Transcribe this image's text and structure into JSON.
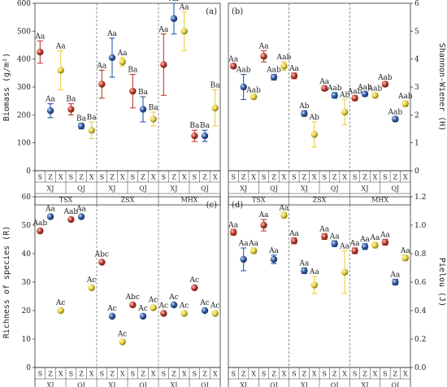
{
  "colors": {
    "S": "#c0392b",
    "Z": "#2e5aa8",
    "X": "#e8d23a"
  },
  "chart_data": [
    {
      "panel": "(a)",
      "type": "scatter",
      "ylabel": "Biomass (g/m²)",
      "ylim": [
        0,
        600
      ],
      "yticks": [
        0,
        100,
        200,
        300,
        400,
        500,
        600
      ],
      "yaxis_side": "left",
      "x": [
        "S",
        "Z",
        "X",
        "S",
        "Z",
        "X",
        "S",
        "Z",
        "X",
        "S",
        "Z",
        "X",
        "S",
        "Z",
        "X",
        "S",
        "Z",
        "X"
      ],
      "group2": [
        "XJ",
        "QJ",
        "XJ",
        "QJ",
        "XJ",
        "QJ"
      ],
      "group1": [
        "TSX",
        "ZSX",
        "MHX"
      ],
      "y": [
        425,
        215,
        360,
        220,
        160,
        145,
        310,
        405,
        390,
        285,
        220,
        185,
        380,
        545,
        500,
        125,
        125,
        225
      ],
      "err": [
        40,
        25,
        70,
        20,
        10,
        30,
        50,
        70,
        15,
        60,
        45,
        25,
        110,
        55,
        70,
        20,
        20,
        65
      ],
      "labels": [
        "Aa",
        "Aa",
        "Aa",
        "Ba",
        "Ba",
        "Ba",
        "Aa",
        "Aa",
        "Aa",
        "Ba",
        "Ba",
        "Ba",
        "Aa",
        "Aa",
        "Aa",
        "Ba",
        "Ba",
        "Ba"
      ]
    },
    {
      "panel": "(b)",
      "type": "scatter",
      "ylabel": "Shannon-Wiener (H)",
      "ylim": [
        0,
        6
      ],
      "yticks": [
        0,
        1,
        2,
        3,
        4,
        5,
        6
      ],
      "yaxis_side": "right",
      "x": [
        "S",
        "Z",
        "X",
        "S",
        "Z",
        "X",
        "S",
        "Z",
        "X",
        "S",
        "Z",
        "X",
        "S",
        "Z",
        "X",
        "S",
        "Z",
        "X"
      ],
      "group2": [
        "XJ",
        "QJ",
        "XJ",
        "QJ",
        "XJ",
        "QJ"
      ],
      "group1": [
        "TSX",
        "ZSX",
        "MHX"
      ],
      "y": [
        3.75,
        3.0,
        2.65,
        4.1,
        3.35,
        3.75,
        3.4,
        2.05,
        1.3,
        2.95,
        2.7,
        2.1,
        2.6,
        2.75,
        2.7,
        3.1,
        1.85,
        2.4
      ],
      "err": [
        0.08,
        0.45,
        0.08,
        0.2,
        0.1,
        0.15,
        0.1,
        0.1,
        0.45,
        0.08,
        0.1,
        0.45,
        0.08,
        0.08,
        0.08,
        0.08,
        0.08,
        0.1
      ],
      "labels": [
        "Aa",
        "Aab",
        "Aab",
        "Aa",
        "Aab",
        "Aab",
        "Aa",
        "Ab",
        "Ab",
        "Aa",
        "Aab",
        "Ab",
        "Aab",
        "Aab",
        "Aab",
        "Aab",
        "Aab",
        "Aab"
      ]
    },
    {
      "panel": "(c)",
      "type": "scatter",
      "ylabel": "Richness of species (R)",
      "ylim": [
        0,
        60
      ],
      "yticks": [
        0,
        10,
        20,
        30,
        40,
        50,
        60
      ],
      "yaxis_side": "left",
      "x": [
        "S",
        "Z",
        "X",
        "S",
        "Z",
        "X",
        "S",
        "Z",
        "X",
        "S",
        "Z",
        "X",
        "S",
        "Z",
        "X",
        "S",
        "Z",
        "X"
      ],
      "group2": [
        "XJ",
        "QJ",
        "XJ",
        "QJ",
        "XJ",
        "QJ"
      ],
      "group1": [
        "TSX",
        "ZSX",
        "MHX"
      ],
      "y": [
        48,
        53,
        20,
        52,
        53,
        28,
        37,
        18,
        9,
        22,
        18,
        21,
        19,
        22,
        19,
        28,
        20,
        19
      ],
      "err": [
        0,
        0,
        0,
        0,
        0,
        0,
        0,
        0,
        0,
        0,
        0,
        0,
        0,
        0,
        0,
        0,
        0,
        0
      ],
      "labels": [
        "Aab",
        "Aa",
        "Ac",
        "Aab",
        "Aa",
        "Ac",
        "Abc",
        "Ac",
        "Ac",
        "Abc",
        "Ac",
        "Ac",
        "Ac",
        "Ac",
        "Ac",
        "Ac",
        "Ac",
        "Ac"
      ]
    },
    {
      "panel": "(d)",
      "type": "scatter",
      "ylabel": "Pielou (J)",
      "ylim": [
        0,
        1.2
      ],
      "yticks": [
        0.0,
        0.2,
        0.4,
        0.6,
        0.8,
        1.0,
        1.2
      ],
      "yaxis_side": "right",
      "x": [
        "S",
        "Z",
        "X",
        "S",
        "Z",
        "X",
        "S",
        "Z",
        "X",
        "S",
        "Z",
        "X",
        "S",
        "Z",
        "X",
        "S",
        "Z",
        "X"
      ],
      "group2": [
        "XJ",
        "QJ",
        "XJ",
        "QJ",
        "XJ",
        "QJ"
      ],
      "group1": [
        "TSX",
        "ZSX",
        "MHX"
      ],
      "y": [
        0.95,
        0.76,
        0.82,
        1.0,
        0.76,
        1.07,
        0.89,
        0.68,
        0.58,
        0.92,
        0.87,
        0.67,
        0.82,
        0.85,
        0.86,
        0.88,
        0.6,
        0.77
      ],
      "err": [
        0.02,
        0.08,
        0.02,
        0.04,
        0.03,
        0.02,
        0.02,
        0.02,
        0.06,
        0.02,
        0.02,
        0.15,
        0.02,
        0.02,
        0.02,
        0.02,
        0.02,
        0.02
      ],
      "labels": [
        "Aa",
        "Aa",
        "Aa",
        "Aa",
        "Aa",
        "Aa",
        "Aa",
        "Aa",
        "Aa",
        "Aa",
        "Aa",
        "Aa",
        "Aa",
        "Aa",
        "Aa",
        "Aa",
        "Aa",
        "Aa"
      ]
    }
  ]
}
